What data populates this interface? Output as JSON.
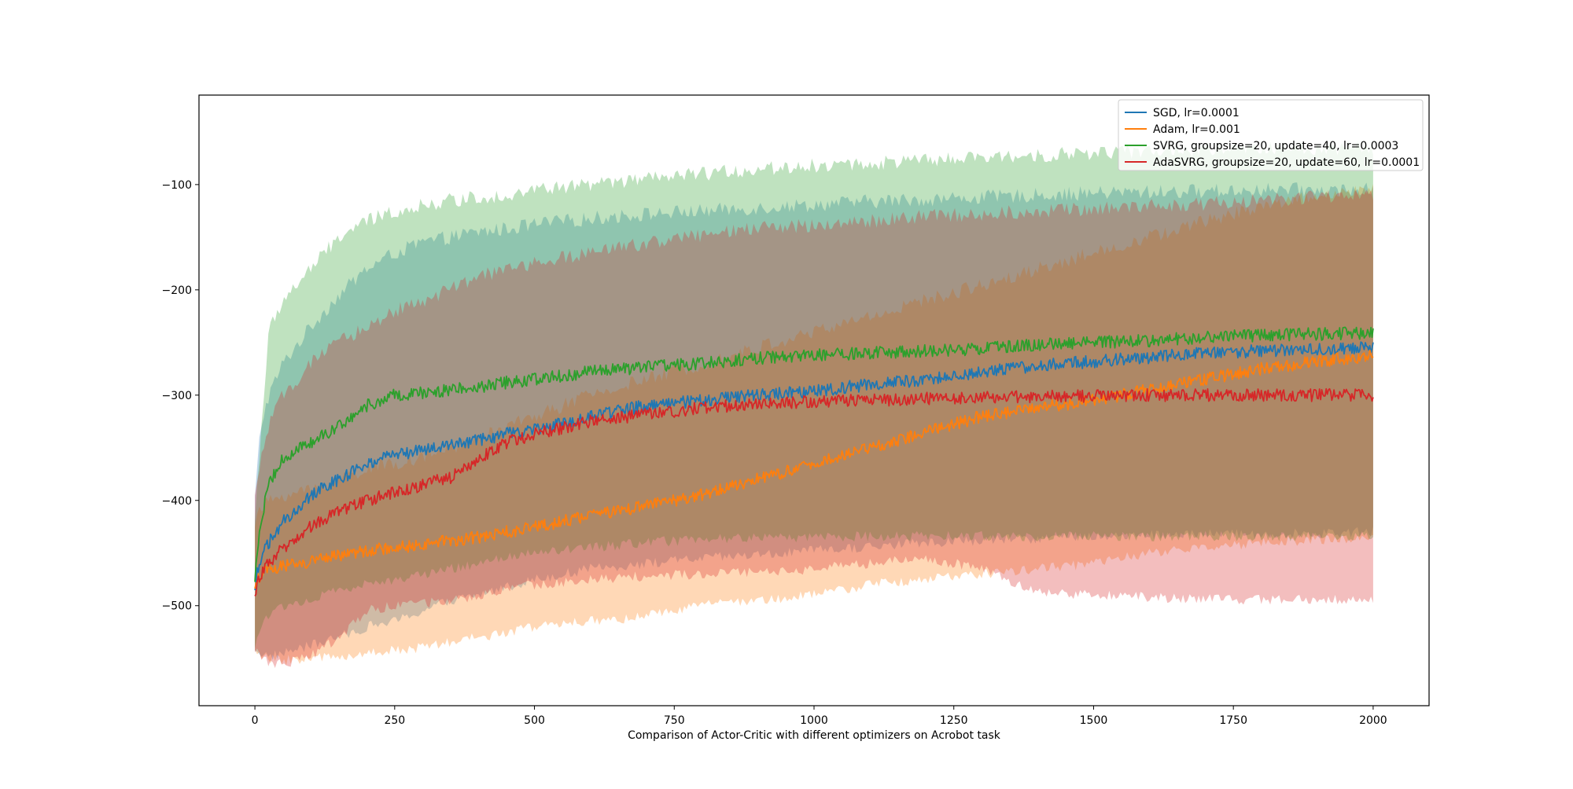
{
  "chart_data": {
    "type": "line",
    "title": "",
    "xlabel": "Comparison of Actor-Critic with different optimizers on Acrobot task",
    "ylabel": "",
    "xlim": [
      -100,
      2100
    ],
    "ylim": [
      -595,
      -15
    ],
    "xticks": [
      0,
      250,
      500,
      750,
      1000,
      1250,
      1500,
      1750,
      2000
    ],
    "yticks": [
      -500,
      -400,
      -300,
      -200,
      -100
    ],
    "grid": false,
    "legend_position": "upper right",
    "series": [
      {
        "name": "SGD, lr=0.0001",
        "color": "#1f77b4",
        "x": [
          0,
          10,
          25,
          50,
          100,
          150,
          200,
          250,
          300,
          350,
          400,
          450,
          500,
          600,
          700,
          800,
          900,
          1000,
          1100,
          1200,
          1300,
          1400,
          1500,
          1600,
          1700,
          1800,
          1900,
          2000
        ],
        "mean": [
          -480,
          -455,
          -440,
          -420,
          -395,
          -380,
          -365,
          -357,
          -352,
          -348,
          -343,
          -337,
          -333,
          -320,
          -310,
          -305,
          -300,
          -296,
          -290,
          -285,
          -278,
          -272,
          -268,
          -264,
          -260,
          -258,
          -256,
          -255
        ],
        "upper": [
          -400,
          -330,
          -300,
          -270,
          -235,
          -205,
          -180,
          -165,
          -155,
          -150,
          -145,
          -142,
          -138,
          -132,
          -128,
          -125,
          -122,
          -119,
          -116,
          -114,
          -112,
          -110,
          -108,
          -107,
          -106,
          -105,
          -105,
          -105
        ],
        "lower": [
          -540,
          -545,
          -548,
          -545,
          -538,
          -530,
          -520,
          -515,
          -505,
          -495,
          -490,
          -482,
          -475,
          -465,
          -460,
          -455,
          -452,
          -448,
          -444,
          -440,
          -438,
          -436,
          -434,
          -433,
          -432,
          -432,
          -431,
          -430
        ]
      },
      {
        "name": "Adam, lr=0.001",
        "color": "#ff7f0e",
        "x": [
          0,
          10,
          25,
          50,
          100,
          150,
          200,
          250,
          300,
          350,
          400,
          450,
          500,
          600,
          700,
          800,
          900,
          1000,
          1100,
          1200,
          1300,
          1400,
          1500,
          1600,
          1700,
          1800,
          1900,
          2000
        ],
        "mean": [
          -480,
          -470,
          -465,
          -462,
          -458,
          -452,
          -448,
          -445,
          -442,
          -438,
          -435,
          -430,
          -425,
          -415,
          -405,
          -395,
          -380,
          -365,
          -350,
          -335,
          -320,
          -312,
          -305,
          -295,
          -285,
          -275,
          -268,
          -262
        ],
        "upper": [
          -420,
          -410,
          -400,
          -395,
          -390,
          -380,
          -370,
          -365,
          -358,
          -350,
          -342,
          -330,
          -320,
          -300,
          -285,
          -270,
          -255,
          -240,
          -225,
          -210,
          -195,
          -180,
          -165,
          -150,
          -135,
          -120,
          -110,
          -105
        ],
        "lower": [
          -545,
          -548,
          -550,
          -552,
          -550,
          -548,
          -545,
          -542,
          -540,
          -535,
          -530,
          -525,
          -520,
          -515,
          -510,
          -500,
          -495,
          -490,
          -480,
          -475,
          -470,
          -465,
          -460,
          -450,
          -445,
          -440,
          -438,
          -435
        ]
      },
      {
        "name": "SVRG, groupsize=20, update=40, lr=0.0003",
        "color": "#2ca02c",
        "x": [
          0,
          10,
          25,
          50,
          100,
          150,
          200,
          250,
          300,
          350,
          400,
          450,
          500,
          600,
          700,
          800,
          900,
          1000,
          1100,
          1200,
          1300,
          1400,
          1500,
          1600,
          1700,
          1800,
          1900,
          2000
        ],
        "mean": [
          -475,
          -420,
          -385,
          -360,
          -345,
          -330,
          -310,
          -300,
          -298,
          -295,
          -292,
          -288,
          -285,
          -278,
          -273,
          -270,
          -265,
          -262,
          -260,
          -258,
          -256,
          -252,
          -250,
          -248,
          -245,
          -243,
          -242,
          -241
        ],
        "upper": [
          -420,
          -340,
          -240,
          -210,
          -180,
          -150,
          -135,
          -125,
          -120,
          -115,
          -112,
          -110,
          -105,
          -100,
          -95,
          -90,
          -85,
          -82,
          -80,
          -77,
          -75,
          -72,
          -70,
          -68,
          -67,
          -66,
          -65,
          -65
        ],
        "lower": [
          -540,
          -520,
          -510,
          -500,
          -495,
          -485,
          -480,
          -475,
          -470,
          -465,
          -460,
          -455,
          -450,
          -445,
          -440,
          -437,
          -435,
          -435,
          -434,
          -434,
          -434,
          -434,
          -434,
          -434,
          -434,
          -434,
          -434,
          -434
        ]
      },
      {
        "name": "AdaSVRG, groupsize=20, update=60, lr=0.0001",
        "color": "#d62728",
        "x": [
          0,
          10,
          25,
          50,
          100,
          150,
          200,
          250,
          300,
          350,
          400,
          450,
          500,
          600,
          700,
          800,
          900,
          1000,
          1100,
          1200,
          1300,
          1400,
          1500,
          1600,
          1700,
          1800,
          1900,
          2000
        ],
        "mean": [
          -490,
          -470,
          -460,
          -445,
          -425,
          -410,
          -400,
          -393,
          -385,
          -378,
          -360,
          -345,
          -337,
          -325,
          -318,
          -312,
          -308,
          -306,
          -305,
          -303,
          -302,
          -301,
          -301,
          -300,
          -300,
          -300,
          -300,
          -300
        ],
        "upper": [
          -400,
          -360,
          -330,
          -300,
          -270,
          -250,
          -235,
          -220,
          -210,
          -200,
          -188,
          -180,
          -175,
          -165,
          -155,
          -148,
          -142,
          -138,
          -135,
          -130,
          -128,
          -125,
          -123,
          -120,
          -118,
          -115,
          -112,
          -110
        ],
        "lower": [
          -540,
          -550,
          -555,
          -555,
          -548,
          -530,
          -505,
          -500,
          -498,
          -495,
          -490,
          -485,
          -480,
          -475,
          -472,
          -470,
          -468,
          -465,
          -460,
          -455,
          -465,
          -488,
          -490,
          -492,
          -494,
          -494,
          -494,
          -494
        ]
      }
    ]
  }
}
